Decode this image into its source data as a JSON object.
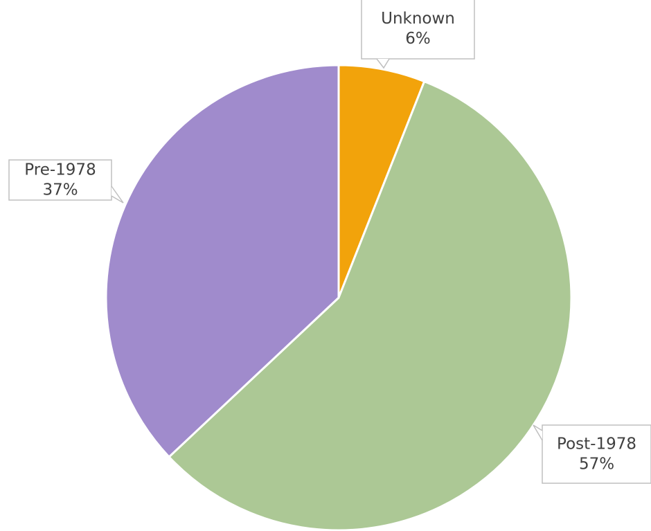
{
  "chart_data": {
    "type": "pie",
    "categories": [
      "Unknown",
      "Post-1978",
      "Pre-1978"
    ],
    "values": [
      6,
      57,
      37
    ],
    "value_labels": [
      "6%",
      "57%",
      "37%"
    ],
    "colors": [
      "#f2a30b",
      "#acc895",
      "#a08bcc"
    ]
  }
}
